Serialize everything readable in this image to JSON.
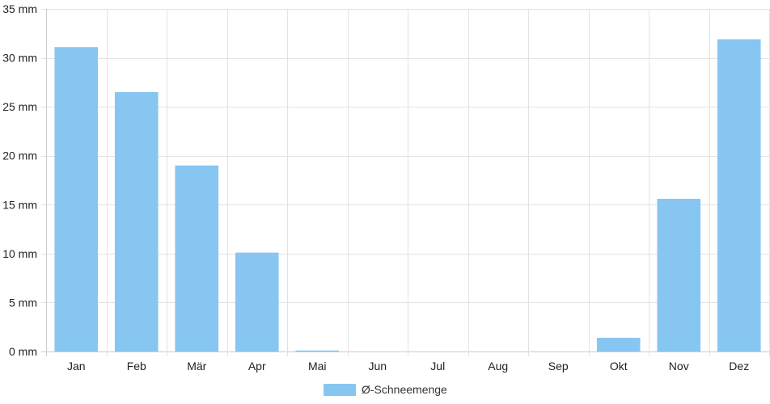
{
  "chart_data": {
    "type": "bar",
    "categories": [
      "Jan",
      "Feb",
      "Mär",
      "Apr",
      "Mai",
      "Jun",
      "Jul",
      "Aug",
      "Sep",
      "Okt",
      "Nov",
      "Dez"
    ],
    "series": [
      {
        "name": "Ø-Schneemenge",
        "color": "#88c6f2",
        "values": [
          31.1,
          26.5,
          19.0,
          10.1,
          0.1,
          0,
          0,
          0,
          0,
          1.4,
          15.6,
          31.9
        ]
      }
    ],
    "ylim": [
      0,
      35
    ],
    "yticks": [
      0,
      5,
      10,
      15,
      20,
      25,
      30,
      35
    ],
    "ytick_labels": [
      "0 mm",
      "5 mm",
      "10 mm",
      "15 mm",
      "20 mm",
      "25 mm",
      "30 mm",
      "35 mm"
    ],
    "grid": true,
    "legend_position": "bottom-center",
    "grid_color": "#e3e3e3",
    "axis_color": "#cccccc"
  }
}
